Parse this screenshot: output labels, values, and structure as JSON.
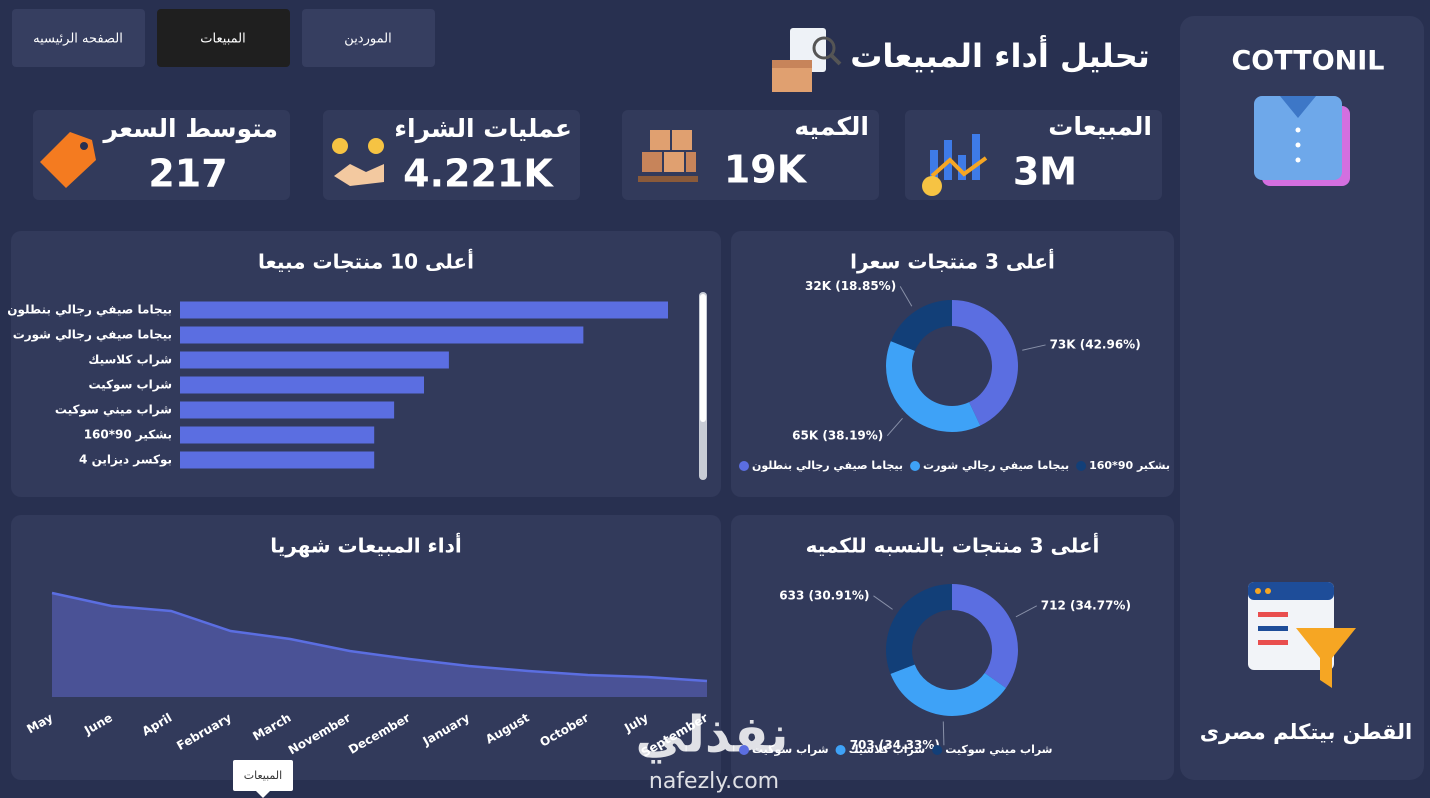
{
  "nav": [
    "الصفحه الرئيسيه",
    "المبيعات",
    "الموردين"
  ],
  "header": {
    "title": "تحليل أداء المبيعات"
  },
  "kpis": [
    {
      "label": "المبيعات",
      "value": "3M"
    },
    {
      "label": "الكميه",
      "value": "19K"
    },
    {
      "label": "عمليات الشراء",
      "value": "4.221K"
    },
    {
      "label": "متوسط السعر",
      "value": "217"
    }
  ],
  "sidebar": {
    "brand": "COTTONIL",
    "slogan": "القطن بيتكلم مصرى"
  },
  "chart_data": [
    {
      "type": "bar",
      "title": "أعلى 10 منتجات مبيعا",
      "categories": [
        "بيجاما صيفي رجالي بنطلون",
        "بيجاما صيفي رجالي شورت",
        "شراب كلاسيك",
        "شراب سوكيت",
        "شراب ميني سوكيت",
        "بشكير 90*160",
        "بوكسر ديزاين 4"
      ],
      "values": [
        490,
        405,
        270,
        245,
        215,
        195,
        195
      ],
      "color": "#5b6ee1"
    },
    {
      "type": "pie",
      "title": "أعلى 3 منتجات سعرا",
      "donut": true,
      "categories": [
        "بيجاما صيفي رجالي بنطلون",
        "بيجاما صيفي رجالي شورت",
        "بشكير 90*160"
      ],
      "values": [
        42.96,
        38.19,
        18.85
      ],
      "value_labels": [
        "73K (42.96%)",
        "65K (38.19%)",
        "32K (18.85%)"
      ],
      "colors": [
        "#5b6ee1",
        "#3ea2f7",
        "#123f78"
      ]
    },
    {
      "type": "area",
      "title": "أداء المبيعات شهريا",
      "categories": [
        "May",
        "June",
        "April",
        "February",
        "March",
        "November",
        "December",
        "January",
        "August",
        "October",
        "July",
        "September"
      ],
      "values": [
        520,
        455,
        430,
        330,
        290,
        230,
        190,
        155,
        130,
        110,
        100,
        80
      ],
      "color": "#5b6ee1"
    },
    {
      "type": "pie",
      "title": "أعلى 3 منتجات بالنسبه للكميه",
      "donut": true,
      "categories": [
        "شراب سوكيت",
        "شراب كلاسيك",
        "شراب ميني سوكيت"
      ],
      "values": [
        34.77,
        34.33,
        30.91
      ],
      "value_labels": [
        "712 (34.77%)",
        "703 (34.33%)",
        "633 (30.91%)"
      ],
      "colors": [
        "#5b6ee1",
        "#3ea2f7",
        "#123f78"
      ]
    }
  ],
  "tooltip": "المبيعات",
  "watermark": {
    "logo": "نفذلي",
    "url": "nafezly.com"
  }
}
